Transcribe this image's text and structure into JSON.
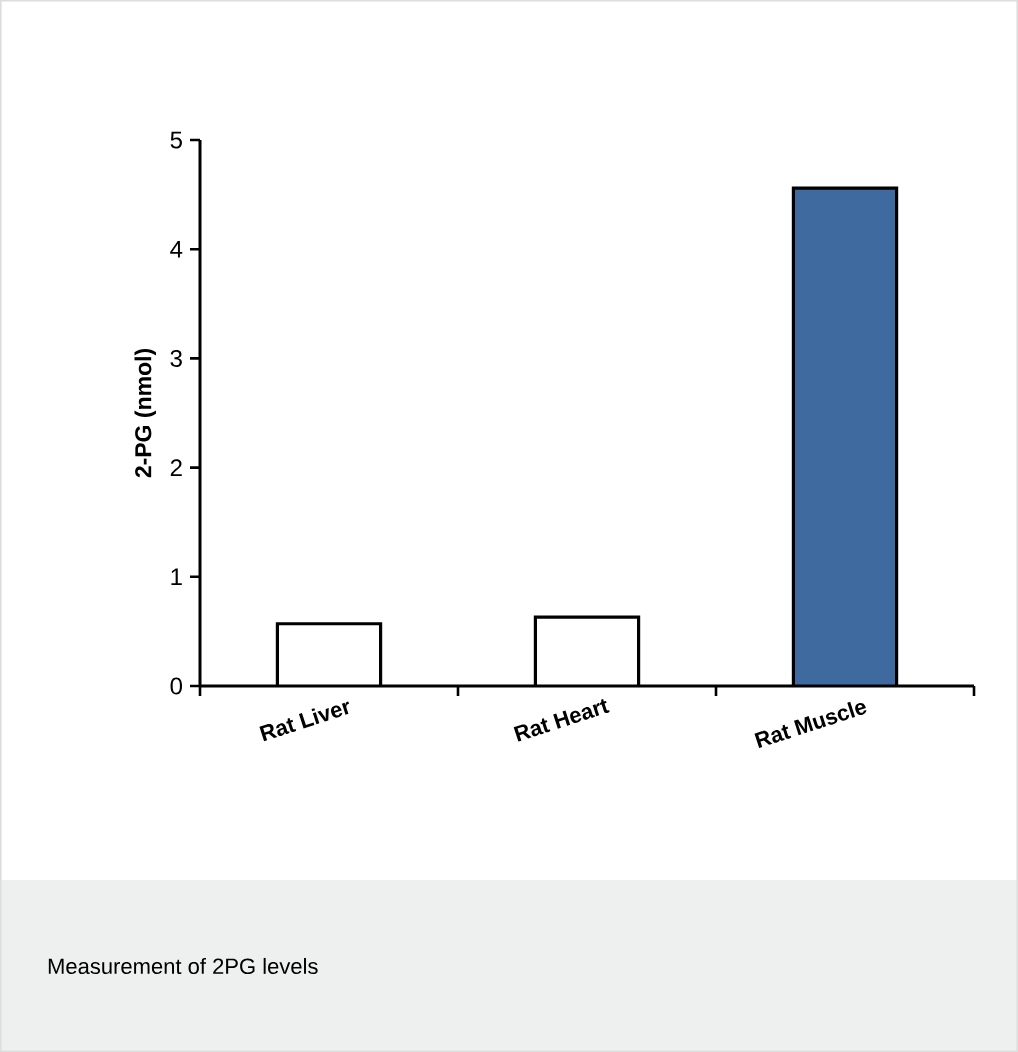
{
  "chart_data": {
    "type": "bar",
    "ylabel": "2-PG (nmol)",
    "categories": [
      "Rat Liver",
      "Rat Heart",
      "Rat Muscle"
    ],
    "values": [
      0.57,
      0.63,
      4.56
    ],
    "colors": [
      "#ffffff",
      "#ffffff",
      "#3f6aa0"
    ],
    "ylim": [
      0,
      5
    ],
    "yticks": [
      0,
      1,
      2,
      3,
      4,
      5
    ],
    "grid": false,
    "annotations": [
      "Measurement of 2PG levels"
    ]
  }
}
